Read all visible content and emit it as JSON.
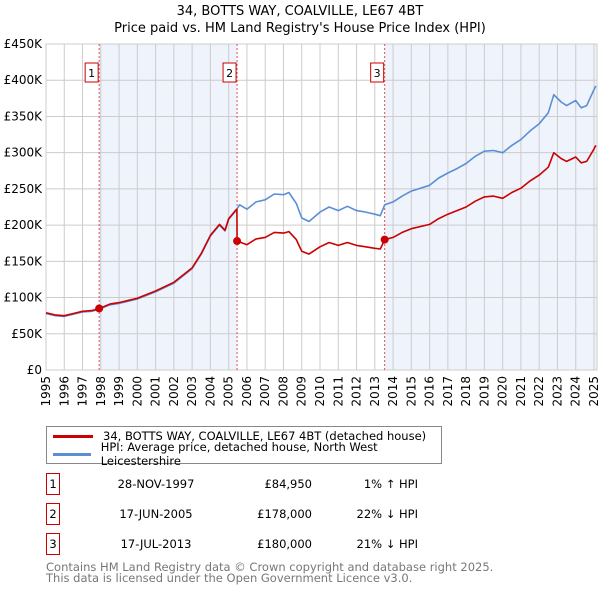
{
  "chart_data": {
    "type": "line",
    "title": "34, BOTTS WAY, COALVILLE, LE67 4BT",
    "subtitle": "Price paid vs. HM Land Registry's House Price Index (HPI)",
    "xlabel": "",
    "ylabel": "",
    "xlim": [
      1995,
      2025.2
    ],
    "ylim": [
      0,
      450000
    ],
    "x_ticks": [
      "1995",
      "1996",
      "1997",
      "1998",
      "1999",
      "2000",
      "2001",
      "2002",
      "2003",
      "2004",
      "2005",
      "2006",
      "2007",
      "2008",
      "2009",
      "2010",
      "2011",
      "2012",
      "2013",
      "2014",
      "2015",
      "2016",
      "2017",
      "2018",
      "2019",
      "2020",
      "2021",
      "2022",
      "2023",
      "2024",
      "2025"
    ],
    "y_ticks": [
      {
        "v": 0,
        "label": "£0"
      },
      {
        "v": 50000,
        "label": "£50K"
      },
      {
        "v": 100000,
        "label": "£100K"
      },
      {
        "v": 150000,
        "label": "£150K"
      },
      {
        "v": 200000,
        "label": "£200K"
      },
      {
        "v": 250000,
        "label": "£250K"
      },
      {
        "v": 300000,
        "label": "£300K"
      },
      {
        "v": 350000,
        "label": "£350K"
      },
      {
        "v": 400000,
        "label": "£400K"
      },
      {
        "v": 450000,
        "label": "£450K"
      }
    ],
    "grid": true,
    "series": [
      {
        "name": "34, BOTTS WAY, COALVILLE, LE67 4BT (detached house)",
        "color": "#cc0000",
        "x": [
          1995,
          1995.5,
          1996,
          1996.5,
          1997,
          1997.5,
          1997.91,
          1998.5,
          1999,
          2000,
          2001,
          2002,
          2003,
          2003.5,
          2004,
          2004.5,
          2004.8,
          2005,
          2005.4,
          2005.45,
          2005.46,
          2006,
          2006.5,
          2007,
          2007.5,
          2008,
          2008.3,
          2008.7,
          2009,
          2009.4,
          2010,
          2010.5,
          2011,
          2011.5,
          2012,
          2012.5,
          2013,
          2013.3,
          2013.54,
          2014,
          2014.5,
          2015,
          2016,
          2016.5,
          2017,
          2017.5,
          2018,
          2018.5,
          2019,
          2019.5,
          2020,
          2020.5,
          2021,
          2021.5,
          2022,
          2022.5,
          2022.8,
          2023.2,
          2023.5,
          2024,
          2024.3,
          2024.6,
          2025,
          2025.1
        ],
        "y": [
          79000,
          76000,
          75000,
          78000,
          81000,
          82000,
          84950,
          91000,
          93000,
          99000,
          109000,
          121000,
          141000,
          161000,
          186000,
          201000,
          193000,
          209000,
          221000,
          222000,
          178000,
          173000,
          181000,
          183000,
          190000,
          189000,
          191000,
          180000,
          164000,
          160000,
          170000,
          176000,
          172000,
          176000,
          172000,
          170000,
          168000,
          167000,
          180000,
          183000,
          190000,
          195000,
          201000,
          209000,
          215000,
          220000,
          225000,
          233000,
          239000,
          240000,
          237000,
          245000,
          251000,
          261000,
          269000,
          280000,
          300000,
          292000,
          288000,
          294000,
          286000,
          288000,
          305000,
          310000
        ]
      },
      {
        "name": "HPI: Average price, detached house, North West Leicestershire",
        "color": "#5b8fd4",
        "x": [
          1995,
          1995.5,
          1996,
          1996.5,
          1997,
          1997.5,
          1997.91,
          1998.5,
          1999,
          2000,
          2001,
          2002,
          2003,
          2003.5,
          2004,
          2004.5,
          2004.8,
          2005,
          2005.4,
          2005.6,
          2006,
          2006.5,
          2007,
          2007.5,
          2008,
          2008.3,
          2008.7,
          2009,
          2009.4,
          2010,
          2010.5,
          2011,
          2011.5,
          2012,
          2012.5,
          2013,
          2013.3,
          2013.54,
          2014,
          2014.5,
          2015,
          2016,
          2016.5,
          2017,
          2017.5,
          2018,
          2018.5,
          2019,
          2019.5,
          2020,
          2020.5,
          2021,
          2021.5,
          2022,
          2022.5,
          2022.8,
          2023.2,
          2023.5,
          2024,
          2024.3,
          2024.6,
          2025,
          2025.1
        ],
        "y": [
          78000,
          75000,
          74000,
          77000,
          80000,
          81000,
          84000,
          90000,
          92000,
          98000,
          108000,
          120000,
          140000,
          160000,
          185000,
          200000,
          192000,
          208000,
          220000,
          228000,
          222000,
          232000,
          235000,
          243000,
          242000,
          245000,
          230000,
          210000,
          205000,
          218000,
          225000,
          220000,
          226000,
          220000,
          218000,
          215000,
          213000,
          228000,
          232000,
          240000,
          247000,
          255000,
          265000,
          272000,
          278000,
          285000,
          295000,
          302000,
          303000,
          300000,
          310000,
          318000,
          330000,
          340000,
          355000,
          380000,
          370000,
          365000,
          372000,
          362000,
          365000,
          387000,
          392000
        ]
      }
    ],
    "sales": [
      {
        "label": "1",
        "x": 1997.91,
        "y": 84950
      },
      {
        "label": "2",
        "x": 2005.46,
        "y": 178000
      },
      {
        "label": "3",
        "x": 2013.54,
        "y": 180000
      }
    ],
    "shaded_ranges": [
      [
        1997.91,
        2005.46
      ],
      [
        2013.54,
        2025.2
      ]
    ],
    "legend_placement": "bottom"
  },
  "table": [
    {
      "num": "1",
      "date": "28-NOV-1997",
      "price": "£84,950",
      "hpi": "1% ↑ HPI"
    },
    {
      "num": "2",
      "date": "17-JUN-2005",
      "price": "£178,000",
      "hpi": "22% ↓ HPI"
    },
    {
      "num": "3",
      "date": "17-JUL-2013",
      "price": "£180,000",
      "hpi": "21% ↓ HPI"
    }
  ],
  "footer": {
    "line1": "Contains HM Land Registry data © Crown copyright and database right 2025.",
    "line2": "This data is licensed under the Open Government Licence v3.0."
  }
}
